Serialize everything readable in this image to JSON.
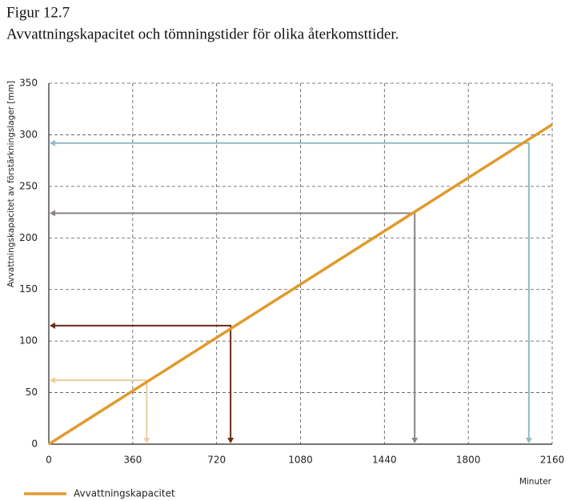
{
  "chart_data": {
    "type": "line",
    "title": "Figur 12.7",
    "subtitle": "Avvattningskapacitet och tömningstider för olika återkomsttider.",
    "y_label": "Avvattningskapacitet av förstärkningslager [mm]",
    "x_label": "Minuter",
    "x": [
      0,
      2160
    ],
    "series": [
      {
        "name": "Avvattningskapacitet",
        "color": "#e09a2c",
        "values": [
          0,
          310
        ]
      }
    ],
    "guides": [
      {
        "x": 420,
        "y": 62,
        "color": "#e8cf9e"
      },
      {
        "x": 780,
        "y": 115,
        "color": "#6b2a14"
      },
      {
        "x": 1570,
        "y": 224,
        "color": "#8a8288"
      },
      {
        "x": 2060,
        "y": 292,
        "color": "#8fbcc4"
      }
    ],
    "xlim": [
      0,
      2160
    ],
    "xticks": [
      0,
      360,
      720,
      1080,
      1440,
      1800,
      2160
    ],
    "ylim": [
      0,
      350
    ],
    "yticks": [
      0,
      50,
      100,
      150,
      200,
      250,
      300,
      350
    ],
    "grid": true
  }
}
